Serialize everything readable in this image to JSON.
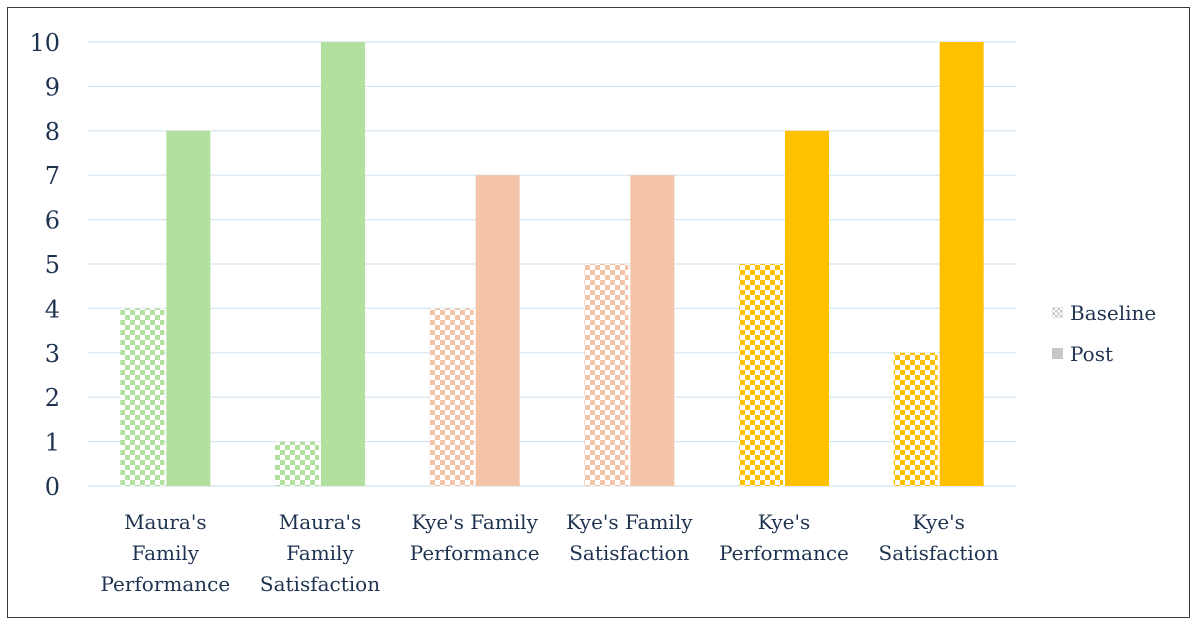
{
  "chart_data": {
    "type": "bar",
    "categories": [
      [
        "Maura's",
        "Family",
        "Performance"
      ],
      [
        "Maura's",
        "Family",
        "Satisfaction"
      ],
      [
        "Kye's Family",
        "Performance"
      ],
      [
        "Kye's Family",
        "Satisfaction"
      ],
      [
        "Kye's",
        "Performance"
      ],
      [
        "Kye's",
        "Satisfaction"
      ]
    ],
    "series": [
      {
        "name": "Baseline",
        "values": [
          4,
          1,
          4,
          5,
          5,
          3
        ],
        "pattern": "checker"
      },
      {
        "name": "Post",
        "values": [
          8,
          10,
          7,
          7,
          8,
          10
        ],
        "pattern": "solid"
      }
    ],
    "category_colors": [
      "#b2e09f",
      "#b2e09f",
      "#f4c4a8",
      "#f4c4a8",
      "#ffc000",
      "#ffc000"
    ],
    "legend_swatch_color": "#c8c8c8",
    "gridline_color": "#d6e4ef",
    "ylim": [
      0,
      10
    ],
    "yticks": [
      0,
      1,
      2,
      3,
      4,
      5,
      6,
      7,
      8,
      9,
      10
    ],
    "grid": true,
    "legend_position": "right",
    "title": "",
    "xlabel": "",
    "ylabel": ""
  }
}
